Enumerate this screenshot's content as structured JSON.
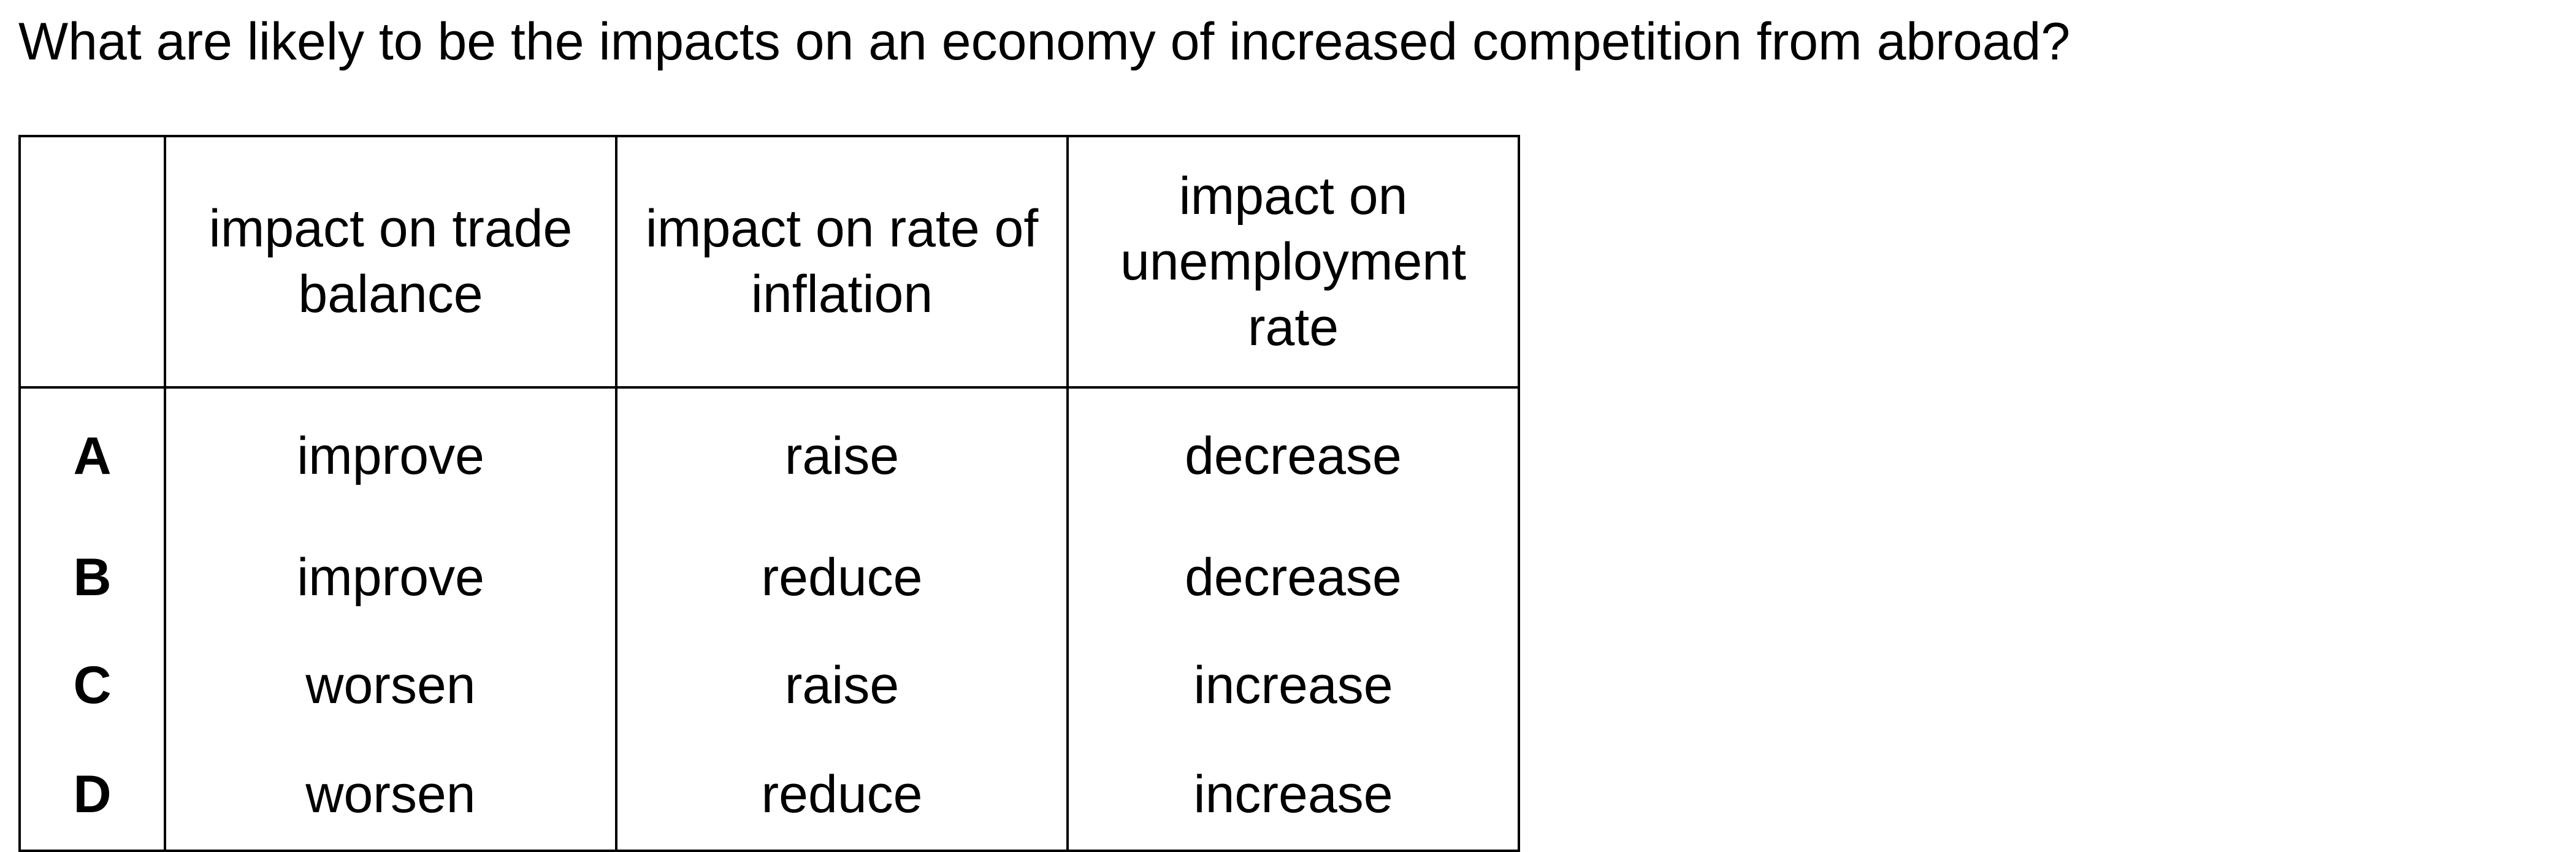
{
  "question": "What are likely to be the impacts on an economy of increased competition from abroad?",
  "table": {
    "headers": [
      "",
      "impact on trade balance",
      "impact on rate of inflation",
      "impact on unemployment rate"
    ],
    "rows": [
      {
        "key": "A",
        "trade_balance": "improve",
        "inflation": "raise",
        "unemployment": "decrease"
      },
      {
        "key": "B",
        "trade_balance": "improve",
        "inflation": "reduce",
        "unemployment": "decrease"
      },
      {
        "key": "C",
        "trade_balance": "worsen",
        "inflation": "raise",
        "unemployment": "increase"
      },
      {
        "key": "D",
        "trade_balance": "worsen",
        "inflation": "reduce",
        "unemployment": "increase"
      }
    ]
  }
}
